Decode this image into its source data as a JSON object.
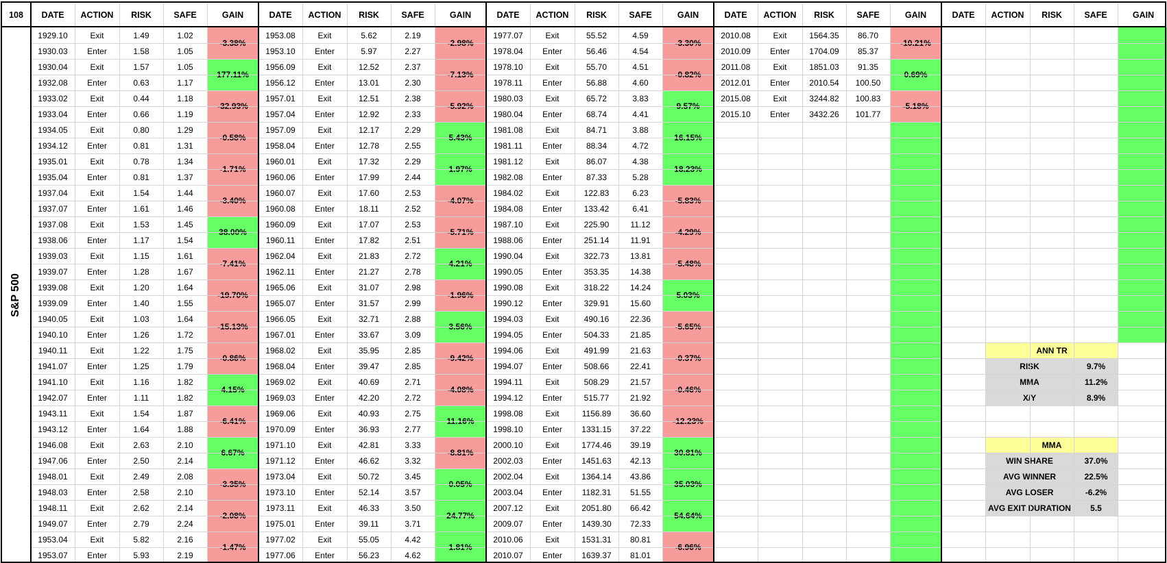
{
  "corner": "108",
  "side_title": "S&P 500",
  "headers": [
    "DATE",
    "ACTION",
    "RISK",
    "SAFE",
    "GAIN"
  ],
  "colors": {
    "loss": "#f79b9b",
    "win": "#66ff66",
    "stat_title": "#ffff99",
    "stat_row": "#d9d9d9"
  },
  "blocks": [
    {
      "rows": [
        [
          "1929.10",
          "Exit",
          "1.49",
          "1.02"
        ],
        [
          "1930.03",
          "Enter",
          "1.58",
          "1.05"
        ],
        [
          "1930.04",
          "Exit",
          "1.57",
          "1.05"
        ],
        [
          "1932.08",
          "Enter",
          "0.63",
          "1.17"
        ],
        [
          "1933.02",
          "Exit",
          "0.44",
          "1.18"
        ],
        [
          "1933.04",
          "Enter",
          "0.66",
          "1.19"
        ],
        [
          "1934.05",
          "Exit",
          "0.80",
          "1.29"
        ],
        [
          "1934.12",
          "Enter",
          "0.81",
          "1.31"
        ],
        [
          "1935.01",
          "Exit",
          "0.78",
          "1.34"
        ],
        [
          "1935.04",
          "Enter",
          "0.81",
          "1.37"
        ],
        [
          "1937.04",
          "Exit",
          "1.54",
          "1.44"
        ],
        [
          "1937.07",
          "Enter",
          "1.61",
          "1.46"
        ],
        [
          "1937.08",
          "Exit",
          "1.53",
          "1.45"
        ],
        [
          "1938.06",
          "Enter",
          "1.17",
          "1.54"
        ],
        [
          "1939.03",
          "Exit",
          "1.15",
          "1.61"
        ],
        [
          "1939.07",
          "Enter",
          "1.28",
          "1.67"
        ],
        [
          "1939.08",
          "Exit",
          "1.20",
          "1.64"
        ],
        [
          "1939.09",
          "Enter",
          "1.40",
          "1.55"
        ],
        [
          "1940.05",
          "Exit",
          "1.03",
          "1.64"
        ],
        [
          "1940.10",
          "Enter",
          "1.26",
          "1.72"
        ],
        [
          "1940.11",
          "Exit",
          "1.22",
          "1.75"
        ],
        [
          "1941.07",
          "Enter",
          "1.25",
          "1.79"
        ],
        [
          "1941.10",
          "Exit",
          "1.16",
          "1.82"
        ],
        [
          "1942.07",
          "Enter",
          "1.11",
          "1.82"
        ],
        [
          "1943.11",
          "Exit",
          "1.54",
          "1.87"
        ],
        [
          "1943.12",
          "Enter",
          "1.64",
          "1.88"
        ],
        [
          "1946.08",
          "Exit",
          "2.63",
          "2.10"
        ],
        [
          "1947.06",
          "Enter",
          "2.50",
          "2.14"
        ],
        [
          "1948.01",
          "Exit",
          "2.49",
          "2.08"
        ],
        [
          "1948.03",
          "Enter",
          "2.58",
          "2.10"
        ],
        [
          "1948.11",
          "Exit",
          "2.62",
          "2.14"
        ],
        [
          "1949.07",
          "Enter",
          "2.79",
          "2.24"
        ],
        [
          "1953.04",
          "Exit",
          "5.82",
          "2.16"
        ],
        [
          "1953.07",
          "Enter",
          "5.93",
          "2.19"
        ]
      ],
      "gains": [
        {
          "v": "-3.38%",
          "t": "loss"
        },
        {
          "v": "177.11%",
          "t": "win"
        },
        {
          "v": "-32.93%",
          "t": "loss"
        },
        {
          "v": "-0.58%",
          "t": "loss"
        },
        {
          "v": "-1.71%",
          "t": "loss"
        },
        {
          "v": "-3.40%",
          "t": "loss"
        },
        {
          "v": "38.00%",
          "t": "win"
        },
        {
          "v": "-7.41%",
          "t": "loss"
        },
        {
          "v": "-19.70%",
          "t": "loss"
        },
        {
          "v": "-15.13%",
          "t": "loss"
        },
        {
          "v": "-0.86%",
          "t": "loss"
        },
        {
          "v": "4.15%",
          "t": "win"
        },
        {
          "v": "-6.41%",
          "t": "loss"
        },
        {
          "v": "6.67%",
          "t": "win"
        },
        {
          "v": "-3.35%",
          "t": "loss"
        },
        {
          "v": "-2.08%",
          "t": "loss"
        },
        {
          "v": "-1.47%",
          "t": "loss"
        }
      ]
    },
    {
      "rows": [
        [
          "1953.08",
          "Exit",
          "5.62",
          "2.19"
        ],
        [
          "1953.10",
          "Enter",
          "5.97",
          "2.27"
        ],
        [
          "1956.09",
          "Exit",
          "12.52",
          "2.37"
        ],
        [
          "1956.12",
          "Enter",
          "13.01",
          "2.30"
        ],
        [
          "1957.01",
          "Exit",
          "12.51",
          "2.38"
        ],
        [
          "1957.04",
          "Enter",
          "12.92",
          "2.33"
        ],
        [
          "1957.09",
          "Exit",
          "12.17",
          "2.29"
        ],
        [
          "1958.04",
          "Enter",
          "12.78",
          "2.55"
        ],
        [
          "1960.01",
          "Exit",
          "17.32",
          "2.29"
        ],
        [
          "1960.06",
          "Enter",
          "17.99",
          "2.44"
        ],
        [
          "1960.07",
          "Exit",
          "17.60",
          "2.53"
        ],
        [
          "1960.08",
          "Enter",
          "18.11",
          "2.52"
        ],
        [
          "1960.09",
          "Exit",
          "17.07",
          "2.53"
        ],
        [
          "1960.11",
          "Enter",
          "17.82",
          "2.51"
        ],
        [
          "1962.04",
          "Exit",
          "21.83",
          "2.72"
        ],
        [
          "1962.11",
          "Enter",
          "21.27",
          "2.78"
        ],
        [
          "1965.06",
          "Exit",
          "31.07",
          "2.98"
        ],
        [
          "1965.07",
          "Enter",
          "31.57",
          "2.99"
        ],
        [
          "1966.05",
          "Exit",
          "32.71",
          "2.88"
        ],
        [
          "1967.01",
          "Enter",
          "33.67",
          "3.09"
        ],
        [
          "1968.02",
          "Exit",
          "35.95",
          "2.85"
        ],
        [
          "1968.04",
          "Enter",
          "39.47",
          "2.85"
        ],
        [
          "1969.02",
          "Exit",
          "40.69",
          "2.71"
        ],
        [
          "1969.03",
          "Enter",
          "42.20",
          "2.72"
        ],
        [
          "1969.06",
          "Exit",
          "40.93",
          "2.75"
        ],
        [
          "1970.09",
          "Enter",
          "36.93",
          "2.77"
        ],
        [
          "1971.10",
          "Exit",
          "42.81",
          "3.33"
        ],
        [
          "1971.12",
          "Enter",
          "46.62",
          "3.32"
        ],
        [
          "1973.04",
          "Exit",
          "50.72",
          "3.45"
        ],
        [
          "1973.10",
          "Enter",
          "52.14",
          "3.57"
        ],
        [
          "1973.11",
          "Exit",
          "46.33",
          "3.50"
        ],
        [
          "1975.01",
          "Enter",
          "39.11",
          "3.71"
        ],
        [
          "1977.02",
          "Exit",
          "55.05",
          "4.42"
        ],
        [
          "1977.06",
          "Enter",
          "56.23",
          "4.62"
        ]
      ],
      "gains": [
        {
          "v": "-2.98%",
          "t": "loss"
        },
        {
          "v": "-7.13%",
          "t": "loss"
        },
        {
          "v": "-5.92%",
          "t": "loss"
        },
        {
          "v": "5.43%",
          "t": "win"
        },
        {
          "v": "1.97%",
          "t": "win"
        },
        {
          "v": "-4.07%",
          "t": "loss"
        },
        {
          "v": "-5.71%",
          "t": "loss"
        },
        {
          "v": "4.21%",
          "t": "win"
        },
        {
          "v": "-1.96%",
          "t": "loss"
        },
        {
          "v": "3.56%",
          "t": "win"
        },
        {
          "v": "-9.42%",
          "t": "loss"
        },
        {
          "v": "-4.08%",
          "t": "loss"
        },
        {
          "v": "11.16%",
          "t": "win"
        },
        {
          "v": "-8.81%",
          "t": "loss"
        },
        {
          "v": "0.05%",
          "t": "win"
        },
        {
          "v": "24.77%",
          "t": "win"
        },
        {
          "v": "1.81%",
          "t": "win"
        }
      ]
    },
    {
      "rows": [
        [
          "1977.07",
          "Exit",
          "55.52",
          "4.59"
        ],
        [
          "1978.04",
          "Enter",
          "56.46",
          "4.54"
        ],
        [
          "1978.10",
          "Exit",
          "55.70",
          "4.51"
        ],
        [
          "1978.11",
          "Enter",
          "56.88",
          "4.60"
        ],
        [
          "1980.03",
          "Exit",
          "65.72",
          "3.83"
        ],
        [
          "1980.04",
          "Enter",
          "68.74",
          "4.41"
        ],
        [
          "1981.08",
          "Exit",
          "84.71",
          "3.88"
        ],
        [
          "1981.11",
          "Enter",
          "88.34",
          "4.72"
        ],
        [
          "1981.12",
          "Exit",
          "86.07",
          "4.38"
        ],
        [
          "1982.08",
          "Enter",
          "87.33",
          "5.28"
        ],
        [
          "1984.02",
          "Exit",
          "122.83",
          "6.23"
        ],
        [
          "1984.08",
          "Enter",
          "133.42",
          "6.41"
        ],
        [
          "1987.10",
          "Exit",
          "225.90",
          "11.12"
        ],
        [
          "1988.06",
          "Enter",
          "251.14",
          "11.91"
        ],
        [
          "1990.04",
          "Exit",
          "322.73",
          "13.81"
        ],
        [
          "1990.05",
          "Enter",
          "353.35",
          "14.38"
        ],
        [
          "1990.08",
          "Exit",
          "318.22",
          "14.24"
        ],
        [
          "1990.12",
          "Enter",
          "329.91",
          "15.60"
        ],
        [
          "1994.03",
          "Exit",
          "490.16",
          "22.36"
        ],
        [
          "1994.05",
          "Enter",
          "504.33",
          "21.85"
        ],
        [
          "1994.06",
          "Exit",
          "491.99",
          "21.63"
        ],
        [
          "1994.07",
          "Enter",
          "508.66",
          "22.41"
        ],
        [
          "1994.11",
          "Exit",
          "508.29",
          "21.57"
        ],
        [
          "1994.12",
          "Enter",
          "515.77",
          "21.92"
        ],
        [
          "1998.08",
          "Exit",
          "1156.89",
          "36.60"
        ],
        [
          "1998.10",
          "Enter",
          "1331.15",
          "37.22"
        ],
        [
          "2000.10",
          "Exit",
          "1774.46",
          "39.19"
        ],
        [
          "2002.03",
          "Enter",
          "1451.63",
          "42.13"
        ],
        [
          "2002.04",
          "Exit",
          "1364.14",
          "43.86"
        ],
        [
          "2003.04",
          "Enter",
          "1182.31",
          "51.55"
        ],
        [
          "2007.12",
          "Exit",
          "2051.80",
          "66.42"
        ],
        [
          "2009.07",
          "Enter",
          "1439.30",
          "72.33"
        ],
        [
          "2010.06",
          "Exit",
          "1531.31",
          "80.81"
        ],
        [
          "2010.07",
          "Enter",
          "1639.37",
          "81.01"
        ]
      ],
      "gains": [
        {
          "v": "-3.30%",
          "t": "loss"
        },
        {
          "v": "-0.82%",
          "t": "loss"
        },
        {
          "v": "9.57%",
          "t": "win"
        },
        {
          "v": "16.15%",
          "t": "win"
        },
        {
          "v": "18.23%",
          "t": "win"
        },
        {
          "v": "-5.83%",
          "t": "loss"
        },
        {
          "v": "-4.29%",
          "t": "loss"
        },
        {
          "v": "-5.48%",
          "t": "loss"
        },
        {
          "v": "5.03%",
          "t": "win"
        },
        {
          "v": "-5.65%",
          "t": "loss"
        },
        {
          "v": "-0.37%",
          "t": "loss"
        },
        {
          "v": "-0.46%",
          "t": "loss"
        },
        {
          "v": "-12.23%",
          "t": "loss"
        },
        {
          "v": "30.81%",
          "t": "win"
        },
        {
          "v": "35.03%",
          "t": "win"
        },
        {
          "v": "54.64%",
          "t": "win"
        },
        {
          "v": "-6.96%",
          "t": "loss"
        }
      ]
    },
    {
      "rows": [
        [
          "2010.08",
          "Exit",
          "1564.35",
          "86.70"
        ],
        [
          "2010.09",
          "Enter",
          "1704.09",
          "85.37"
        ],
        [
          "2011.08",
          "Exit",
          "1851.03",
          "91.35"
        ],
        [
          "2012.01",
          "Enter",
          "2010.54",
          "100.50"
        ],
        [
          "2015.08",
          "Exit",
          "3244.82",
          "100.83"
        ],
        [
          "2015.10",
          "Enter",
          "3432.26",
          "101.77"
        ]
      ],
      "gains": [
        {
          "v": "-10.21%",
          "t": "loss"
        },
        {
          "v": "0.69%",
          "t": "win"
        },
        {
          "v": "-5.18%",
          "t": "loss"
        },
        {
          "v": "",
          "t": "win"
        },
        {
          "v": "",
          "t": "win"
        },
        {
          "v": "",
          "t": "win"
        },
        {
          "v": "",
          "t": "win"
        },
        {
          "v": "",
          "t": "win"
        },
        {
          "v": "",
          "t": "win"
        },
        {
          "v": "",
          "t": "win"
        },
        {
          "v": "",
          "t": "win"
        },
        {
          "v": "",
          "t": "win"
        },
        {
          "v": "",
          "t": "win"
        },
        {
          "v": "",
          "t": "win"
        },
        {
          "v": "",
          "t": "win"
        },
        {
          "v": "",
          "t": "win"
        },
        {
          "v": "",
          "t": "win"
        }
      ]
    },
    {
      "rows": [],
      "gains": [
        {
          "v": "",
          "t": "win"
        },
        {
          "v": "",
          "t": "win"
        },
        {
          "v": "",
          "t": "win"
        },
        {
          "v": "",
          "t": "win"
        },
        {
          "v": "",
          "t": "win"
        },
        {
          "v": "",
          "t": "win"
        },
        {
          "v": "",
          "t": "win"
        },
        {
          "v": "",
          "t": "win"
        },
        {
          "v": "",
          "t": "win"
        },
        {
          "v": "",
          "t": "win"
        }
      ]
    }
  ],
  "stats": [
    {
      "title": "ANN TR",
      "rows": [
        [
          "RISK",
          "9.7%"
        ],
        [
          "MMA",
          "11.2%"
        ],
        [
          "X/Y",
          "8.9%"
        ]
      ]
    },
    {
      "title": "MMA",
      "rows": [
        [
          "WIN SHARE",
          "37.0%"
        ],
        [
          "AVG WINNER",
          "22.5%"
        ],
        [
          "AVG LOSER",
          "-6.2%"
        ],
        [
          "AVG EXIT DURATION",
          "5.5"
        ]
      ]
    }
  ]
}
